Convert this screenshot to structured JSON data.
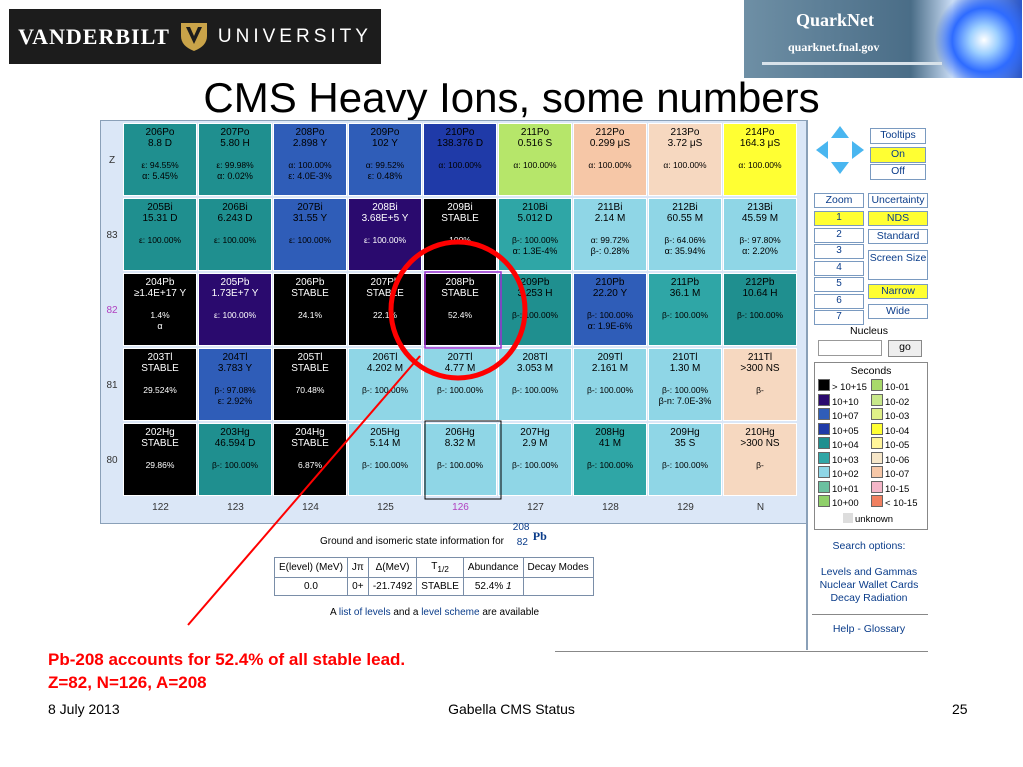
{
  "logos": {
    "vanderbilt": {
      "word1": "VANDERBILT",
      "word2": "UNIVERSITY"
    },
    "quarknet": {
      "title": "QuarkNet",
      "url": "quarknet.fnal.gov"
    }
  },
  "title": "CMS Heavy Ions, some numbers",
  "chart": {
    "z_labels": [
      "Z",
      "83",
      "82",
      "81",
      "80"
    ],
    "n_labels": [
      "122",
      "123",
      "124",
      "125",
      "126",
      "127",
      "128",
      "129",
      "N"
    ],
    "rows": [
      {
        "cells": [
          {
            "nuc": "206Po",
            "hl": "8.8 D",
            "d1": "ε: 94.55%",
            "d2": "α: 5.45%",
            "color": "#1f8f8f",
            "text": "#000000"
          },
          {
            "nuc": "207Po",
            "hl": "5.80 H",
            "d1": "ε: 99.98%",
            "d2": "α: 0.02%",
            "color": "#1f8f8f",
            "text": "#000000"
          },
          {
            "nuc": "208Po",
            "hl": "2.898 Y",
            "d1": "α: 100.00%",
            "d2": "ε: 4.0E-3%",
            "color": "#2f5db8",
            "text": "#000000"
          },
          {
            "nuc": "209Po",
            "hl": "102 Y",
            "d1": "α: 99.52%",
            "d2": "ε: 0.48%",
            "color": "#2f5db8",
            "text": "#000000"
          },
          {
            "nuc": "210Po",
            "hl": "138.376 D",
            "d1": "α: 100.00%",
            "d2": "",
            "color": "#1f3aa8",
            "text": "#000000"
          },
          {
            "nuc": "211Po",
            "hl": "0.516 S",
            "d1": "α: 100.00%",
            "d2": "",
            "color": "#b6e66a",
            "text": "#000000"
          },
          {
            "nuc": "212Po",
            "hl": "0.299 μS",
            "d1": "α: 100.00%",
            "d2": "",
            "color": "#f6c7a7",
            "text": "#000000"
          },
          {
            "nuc": "213Po",
            "hl": "3.72 μS",
            "d1": "α: 100.00%",
            "d2": "",
            "color": "#f6d8c0",
            "text": "#000000"
          },
          {
            "nuc": "214Po",
            "hl": "164.3 μS",
            "d1": "α: 100.00%",
            "d2": "",
            "color": "#ffff33",
            "text": "#000000"
          }
        ]
      },
      {
        "cells": [
          {
            "nuc": "205Bi",
            "hl": "15.31 D",
            "d1": "ε: 100.00%",
            "d2": "",
            "color": "#1f8f8f",
            "text": "#000000"
          },
          {
            "nuc": "206Bi",
            "hl": "6.243 D",
            "d1": "ε: 100.00%",
            "d2": "",
            "color": "#1f8f8f",
            "text": "#000000"
          },
          {
            "nuc": "207Bi",
            "hl": "31.55 Y",
            "d1": "ε: 100.00%",
            "d2": "",
            "color": "#2f5db8",
            "text": "#000000"
          },
          {
            "nuc": "208Bi",
            "hl": "3.68E+5 Y",
            "d1": "ε: 100.00%",
            "d2": "",
            "color": "#2a0a6e",
            "text": "#ffffff"
          },
          {
            "nuc": "209Bi",
            "hl": "STABLE",
            "d1": "100%",
            "d2": "",
            "color": "#000000",
            "text": "#ffffff"
          },
          {
            "nuc": "210Bi",
            "hl": "5.012 D",
            "d1": "β-: 100.00%",
            "d2": "α: 1.3E-4%",
            "color": "#2fa6a6",
            "text": "#000000"
          },
          {
            "nuc": "211Bi",
            "hl": "2.14 M",
            "d1": "α: 99.72%",
            "d2": "β-: 0.28%",
            "color": "#8fd6e6",
            "text": "#000000"
          },
          {
            "nuc": "212Bi",
            "hl": "60.55 M",
            "d1": "β-: 64.06%",
            "d2": "α: 35.94%",
            "color": "#8fd6e6",
            "text": "#000000"
          },
          {
            "nuc": "213Bi",
            "hl": "45.59 M",
            "d1": "β-: 97.80%",
            "d2": "α: 2.20%",
            "color": "#8fd6e6",
            "text": "#000000"
          }
        ]
      },
      {
        "cells": [
          {
            "nuc": "204Pb",
            "hl": "≥1.4E+17 Y",
            "d1": "1.4%",
            "d2": "α",
            "color": "#000000",
            "text": "#ffffff"
          },
          {
            "nuc": "205Pb",
            "hl": "1.73E+7 Y",
            "d1": "ε: 100.00%",
            "d2": "",
            "color": "#2a0a6e",
            "text": "#ffffff"
          },
          {
            "nuc": "206Pb",
            "hl": "STABLE",
            "d1": "24.1%",
            "d2": "",
            "color": "#000000",
            "text": "#ffffff"
          },
          {
            "nuc": "207Pb",
            "hl": "STABLE",
            "d1": "22.1%",
            "d2": "",
            "color": "#000000",
            "text": "#ffffff"
          },
          {
            "nuc": "208Pb",
            "hl": "STABLE",
            "d1": "52.4%",
            "d2": "",
            "color": "#000000",
            "text": "#ffffff"
          },
          {
            "nuc": "209Pb",
            "hl": "3.253 H",
            "d1": "β-: 100.00%",
            "d2": "",
            "color": "#1f8f8f",
            "text": "#000000"
          },
          {
            "nuc": "210Pb",
            "hl": "22.20 Y",
            "d1": "β-: 100.00%",
            "d2": "α: 1.9E-6%",
            "color": "#2f5db8",
            "text": "#000000"
          },
          {
            "nuc": "211Pb",
            "hl": "36.1 M",
            "d1": "β-: 100.00%",
            "d2": "",
            "color": "#2fa6a6",
            "text": "#000000"
          },
          {
            "nuc": "212Pb",
            "hl": "10.64 H",
            "d1": "β-: 100.00%",
            "d2": "",
            "color": "#1f8f8f",
            "text": "#000000"
          }
        ]
      },
      {
        "cells": [
          {
            "nuc": "203Tl",
            "hl": "STABLE",
            "d1": "29.524%",
            "d2": "",
            "color": "#000000",
            "text": "#ffffff"
          },
          {
            "nuc": "204Tl",
            "hl": "3.783 Y",
            "d1": "β-: 97.08%",
            "d2": "ε: 2.92%",
            "color": "#2f5db8",
            "text": "#000000"
          },
          {
            "nuc": "205Tl",
            "hl": "STABLE",
            "d1": "70.48%",
            "d2": "",
            "color": "#000000",
            "text": "#ffffff"
          },
          {
            "nuc": "206Tl",
            "hl": "4.202 M",
            "d1": "β-: 100.00%",
            "d2": "",
            "color": "#8fd6e6",
            "text": "#000000"
          },
          {
            "nuc": "207Tl",
            "hl": "4.77 M",
            "d1": "β-: 100.00%",
            "d2": "",
            "color": "#8fd6e6",
            "text": "#000000"
          },
          {
            "nuc": "208Tl",
            "hl": "3.053 M",
            "d1": "β-: 100.00%",
            "d2": "",
            "color": "#8fd6e6",
            "text": "#000000"
          },
          {
            "nuc": "209Tl",
            "hl": "2.161 M",
            "d1": "β-: 100.00%",
            "d2": "",
            "color": "#8fd6e6",
            "text": "#000000"
          },
          {
            "nuc": "210Tl",
            "hl": "1.30 M",
            "d1": "β-: 100.00%",
            "d2": "β-n: 7.0E-3%",
            "color": "#8fd6e6",
            "text": "#000000"
          },
          {
            "nuc": "211Tl",
            "hl": ">300 NS",
            "d1": "β-",
            "d2": "",
            "color": "#f6d8c0",
            "text": "#000000"
          }
        ]
      },
      {
        "cells": [
          {
            "nuc": "202Hg",
            "hl": "STABLE",
            "d1": "29.86%",
            "d2": "",
            "color": "#000000",
            "text": "#ffffff"
          },
          {
            "nuc": "203Hg",
            "hl": "46.594 D",
            "d1": "β-: 100.00%",
            "d2": "",
            "color": "#1f8f8f",
            "text": "#000000"
          },
          {
            "nuc": "204Hg",
            "hl": "STABLE",
            "d1": "6.87%",
            "d2": "",
            "color": "#000000",
            "text": "#ffffff"
          },
          {
            "nuc": "205Hg",
            "hl": "5.14 M",
            "d1": "β-: 100.00%",
            "d2": "",
            "color": "#8fd6e6",
            "text": "#000000"
          },
          {
            "nuc": "206Hg",
            "hl": "8.32 M",
            "d1": "β-: 100.00%",
            "d2": "",
            "color": "#8fd6e6",
            "text": "#000000"
          },
          {
            "nuc": "207Hg",
            "hl": "2.9 M",
            "d1": "β-: 100.00%",
            "d2": "",
            "color": "#8fd6e6",
            "text": "#000000"
          },
          {
            "nuc": "208Hg",
            "hl": "41 M",
            "d1": "β-: 100.00%",
            "d2": "",
            "color": "#2fa6a6",
            "text": "#000000"
          },
          {
            "nuc": "209Hg",
            "hl": "35 S",
            "d1": "β-: 100.00%",
            "d2": "",
            "color": "#8fd6e6",
            "text": "#000000"
          },
          {
            "nuc": "210Hg",
            "hl": ">300 NS",
            "d1": "β-",
            "d2": "",
            "color": "#f6d8c0",
            "text": "#000000"
          }
        ]
      }
    ]
  },
  "sidebar": {
    "tooltips": {
      "label": "Tooltips",
      "on": "On",
      "off": "Off"
    },
    "zoom": {
      "label": "Zoom",
      "levels": [
        "1",
        "2",
        "3",
        "4",
        "5",
        "6",
        "7"
      ]
    },
    "uncertainty": {
      "label": "Uncertainty",
      "nds": "NDS",
      "standard": "Standard"
    },
    "screen": {
      "label": "Screen Size",
      "narrow": "Narrow",
      "wide": "Wide"
    },
    "nucleus": {
      "label": "Nucleus",
      "placeholder": "",
      "go": "go"
    },
    "legend": {
      "title": "Seconds",
      "items": [
        {
          "label": "> 10+15",
          "color": "#000000"
        },
        {
          "label": "10-01",
          "color": "#a8d96a"
        },
        {
          "label": "10+10",
          "color": "#2a0a6e"
        },
        {
          "label": "10-02",
          "color": "#c8e88a"
        },
        {
          "label": "10+07",
          "color": "#2f5db8"
        },
        {
          "label": "10-03",
          "color": "#e0f088"
        },
        {
          "label": "10+05",
          "color": "#1f3aa8"
        },
        {
          "label": "10-04",
          "color": "#ffff33"
        },
        {
          "label": "10+04",
          "color": "#1f8f8f"
        },
        {
          "label": "10-05",
          "color": "#fff59a"
        },
        {
          "label": "10+03",
          "color": "#2fa6a6"
        },
        {
          "label": "10-06",
          "color": "#f6e6c8"
        },
        {
          "label": "10+02",
          "color": "#8fd6e6"
        },
        {
          "label": "10-07",
          "color": "#f6c7a7"
        },
        {
          "label": "10+01",
          "color": "#6cc0a0"
        },
        {
          "label": "10-15",
          "color": "#f4b6c8"
        },
        {
          "label": "10+00",
          "color": "#8fcf6a"
        },
        {
          "label": "< 10-15",
          "color": "#f08060"
        }
      ],
      "unknown": "unknown",
      "unknown_color": "#dddddd"
    },
    "search_options": "Search options:",
    "links": [
      "Levels and Gammas",
      "Nuclear Wallet Cards",
      "Decay Radiation"
    ],
    "help": "Help - Glossary"
  },
  "ground_state": {
    "caption": "Ground and isomeric state information for",
    "nuclide": {
      "a": "208",
      "z": "82",
      "sym": "Pb"
    },
    "headers": [
      "E(level) (MeV)",
      "Jπ",
      "Δ(MeV)",
      "T",
      "Abundance",
      "Decay Modes"
    ],
    "t_sub": "1/2",
    "row": [
      "0.0",
      "0+",
      "-21.7492",
      "STABLE",
      "52.4%",
      ""
    ],
    "abund_unc": "1",
    "avail": {
      "pre": "A",
      "link1": "list of levels",
      "mid": "and a",
      "link2": "level scheme",
      "post": "are available"
    }
  },
  "note": {
    "line1": "Pb-208 accounts for 52.4% of all stable lead.",
    "line2": "Z=82, N=126, A=208"
  },
  "footer": {
    "date": "8 July 2013",
    "center": "Gabella CMS Status",
    "page": "25"
  },
  "colors": {
    "highlight_circle": "#ff0000",
    "arrow": "#ff0000"
  }
}
